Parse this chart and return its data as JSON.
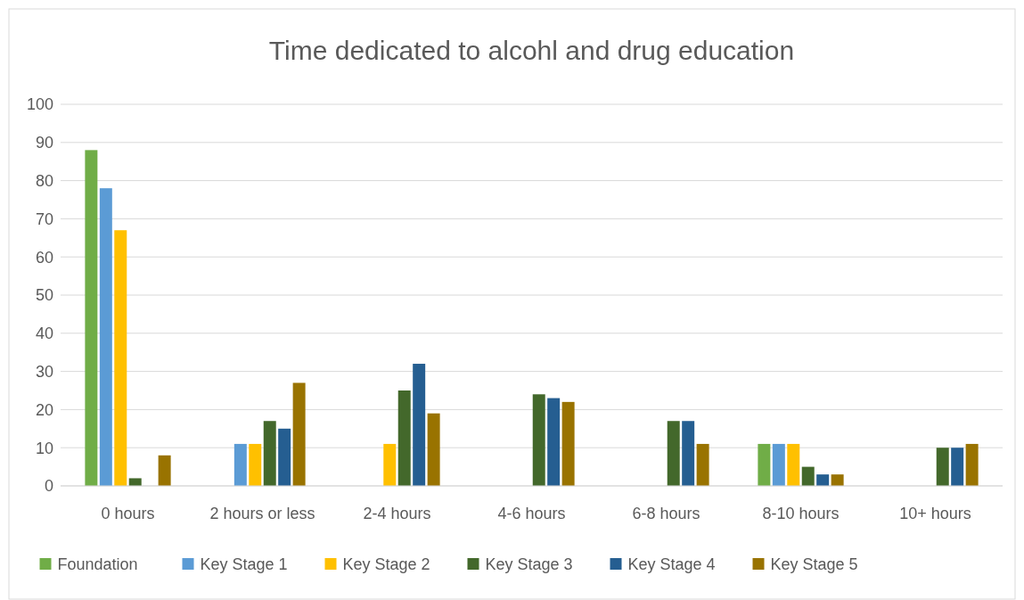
{
  "chart_data": {
    "type": "bar",
    "title": "Time dedicated to alcohl and drug education",
    "categories": [
      "0 hours",
      "2 hours or less",
      "2-4 hours",
      "4-6 hours",
      "6-8 hours",
      "8-10 hours",
      "10+ hours"
    ],
    "series": [
      {
        "name": "Foundation",
        "color": "#70ad47",
        "values": [
          88,
          0,
          0,
          0,
          0,
          11,
          0
        ]
      },
      {
        "name": "Key Stage 1",
        "color": "#5b9bd5",
        "values": [
          78,
          11,
          0,
          0,
          0,
          11,
          0
        ]
      },
      {
        "name": "Key Stage 2",
        "color": "#ffc000",
        "values": [
          67,
          11,
          11,
          0,
          0,
          11,
          0
        ]
      },
      {
        "name": "Key Stage 3",
        "color": "#43682b",
        "values": [
          2,
          17,
          25,
          24,
          17,
          5,
          10
        ]
      },
      {
        "name": "Key Stage 4",
        "color": "#255e91",
        "values": [
          0,
          15,
          32,
          23,
          17,
          3,
          10
        ]
      },
      {
        "name": "Key Stage 5",
        "color": "#997300",
        "values": [
          8,
          27,
          19,
          22,
          11,
          3,
          11
        ]
      }
    ],
    "ylim": [
      0,
      100
    ],
    "yticks": [
      0,
      10,
      20,
      30,
      40,
      50,
      60,
      70,
      80,
      90,
      100
    ],
    "grid": "y",
    "legend": "bottom"
  }
}
